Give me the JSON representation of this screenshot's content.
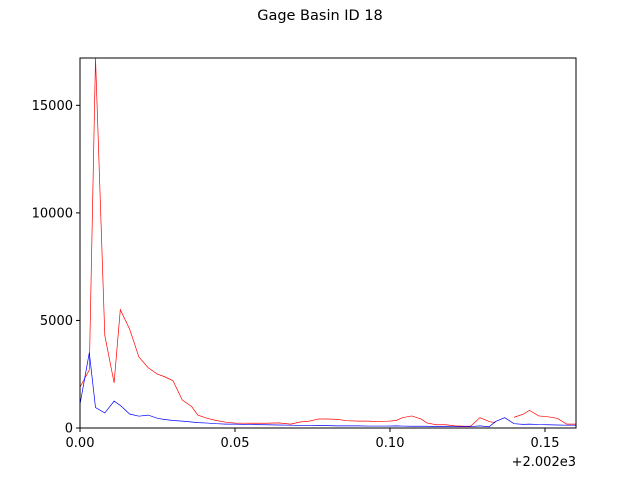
{
  "chart_data": {
    "type": "line",
    "title": "Gage Basin ID 18",
    "xlabel": "",
    "ylabel": "",
    "x_offset_label": "+2.002e3",
    "xlim": [
      0.0,
      0.16
    ],
    "ylim": [
      0,
      17200
    ],
    "xticks": [
      0.0,
      0.05,
      0.1,
      0.15
    ],
    "xtick_labels": [
      "0.00",
      "0.05",
      "0.10",
      "0.15"
    ],
    "yticks": [
      0,
      5000,
      10000,
      15000
    ],
    "ytick_labels": [
      "0",
      "5000",
      "10000",
      "15000"
    ],
    "grid": false,
    "legend": "none",
    "series": [
      {
        "color": "#ff0000",
        "points": [
          [
            0.0,
            1900
          ],
          [
            0.003,
            2700
          ],
          [
            0.005,
            17200
          ],
          [
            0.008,
            4300
          ],
          [
            0.011,
            2100
          ],
          [
            0.013,
            5500
          ],
          [
            0.016,
            4600
          ],
          [
            0.019,
            3300
          ],
          [
            0.022,
            2800
          ],
          [
            0.025,
            2500
          ],
          [
            0.027,
            2400
          ],
          [
            0.03,
            2200
          ],
          [
            0.033,
            1300
          ],
          [
            0.036,
            1000
          ],
          [
            0.038,
            600
          ],
          [
            0.041,
            450
          ],
          [
            0.044,
            350
          ],
          [
            0.047,
            270
          ],
          [
            0.05,
            230
          ],
          [
            0.055,
            220
          ],
          [
            0.06,
            220
          ],
          [
            0.064,
            240
          ],
          [
            0.068,
            180
          ],
          [
            0.071,
            280
          ],
          [
            0.074,
            320
          ],
          [
            0.077,
            420
          ],
          [
            0.08,
            420
          ],
          [
            0.083,
            400
          ],
          [
            0.086,
            340
          ],
          [
            0.09,
            320
          ],
          [
            0.093,
            320
          ],
          [
            0.096,
            300
          ],
          [
            0.099,
            310
          ],
          [
            0.102,
            350
          ],
          [
            0.104,
            480
          ],
          [
            0.107,
            560
          ],
          [
            0.11,
            420
          ],
          [
            0.112,
            230
          ],
          [
            0.115,
            150
          ],
          [
            0.118,
            150
          ],
          [
            0.121,
            100
          ],
          [
            0.124,
            80
          ],
          [
            0.126,
            80
          ],
          [
            0.129,
            480
          ],
          [
            0.132,
            300
          ],
          [
            0.134,
            240
          ],
          [
            0.137,
            null
          ],
          [
            0.14,
            500
          ],
          [
            0.143,
            640
          ],
          [
            0.145,
            820
          ],
          [
            0.148,
            560
          ],
          [
            0.151,
            520
          ],
          [
            0.154,
            450
          ],
          [
            0.157,
            180
          ],
          [
            0.16,
            180
          ]
        ]
      },
      {
        "color": "#0000ff",
        "points": [
          [
            0.0,
            1100
          ],
          [
            0.003,
            3500
          ],
          [
            0.005,
            950
          ],
          [
            0.008,
            700
          ],
          [
            0.011,
            1250
          ],
          [
            0.013,
            1050
          ],
          [
            0.016,
            650
          ],
          [
            0.019,
            550
          ],
          [
            0.022,
            600
          ],
          [
            0.025,
            450
          ],
          [
            0.027,
            400
          ],
          [
            0.03,
            350
          ],
          [
            0.033,
            320
          ],
          [
            0.036,
            280
          ],
          [
            0.038,
            250
          ],
          [
            0.041,
            230
          ],
          [
            0.044,
            200
          ],
          [
            0.047,
            180
          ],
          [
            0.05,
            180
          ],
          [
            0.055,
            160
          ],
          [
            0.06,
            150
          ],
          [
            0.064,
            140
          ],
          [
            0.068,
            130
          ],
          [
            0.071,
            120
          ],
          [
            0.074,
            120
          ],
          [
            0.077,
            110
          ],
          [
            0.08,
            110
          ],
          [
            0.083,
            100
          ],
          [
            0.086,
            100
          ],
          [
            0.09,
            100
          ],
          [
            0.093,
            90
          ],
          [
            0.096,
            90
          ],
          [
            0.099,
            90
          ],
          [
            0.102,
            100
          ],
          [
            0.104,
            90
          ],
          [
            0.107,
            80
          ],
          [
            0.11,
            80
          ],
          [
            0.112,
            80
          ],
          [
            0.115,
            70
          ],
          [
            0.118,
            70
          ],
          [
            0.121,
            60
          ],
          [
            0.124,
            60
          ],
          [
            0.126,
            60
          ],
          [
            0.129,
            100
          ],
          [
            0.132,
            60
          ],
          [
            0.134,
            300
          ],
          [
            0.137,
            480
          ],
          [
            0.14,
            200
          ],
          [
            0.143,
            170
          ],
          [
            0.145,
            180
          ],
          [
            0.148,
            160
          ],
          [
            0.151,
            150
          ],
          [
            0.154,
            140
          ],
          [
            0.157,
            130
          ],
          [
            0.16,
            130
          ]
        ]
      }
    ]
  }
}
